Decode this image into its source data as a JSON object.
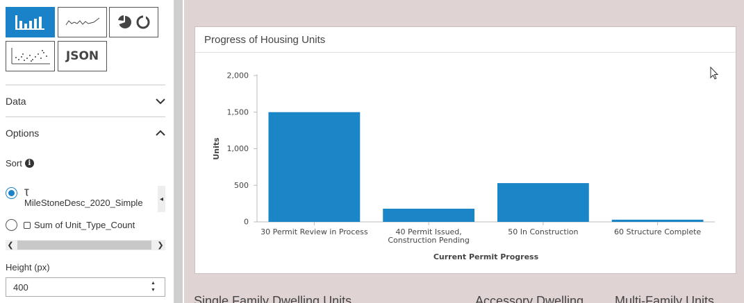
{
  "chart_types": {
    "json_label": "JSON"
  },
  "sections": {
    "data_label": "Data",
    "options_label": "Options"
  },
  "sort": {
    "label": "Sort",
    "options": [
      {
        "label": "MileStoneDesc_2020_Simple",
        "type_icon": "Ʈ",
        "selected": true
      },
      {
        "label": "Sum of Unit_Type_Count",
        "selected": false
      }
    ]
  },
  "height": {
    "label": "Height (px)",
    "value": "400"
  },
  "card": {
    "title": "Progress of Housing Units"
  },
  "bottom_labels": [
    "Single Family Dwelling Units",
    "Accessory Dwelling",
    "Multi-Family Units"
  ],
  "colors": {
    "accent": "#1a82c8",
    "bar": "#1a86c8",
    "background": "#e0d3d3"
  },
  "chart_data": {
    "type": "bar",
    "title": "Progress of Housing Units",
    "xlabel": "Current Permit Progress",
    "ylabel": "Units",
    "ylim": [
      0,
      2000
    ],
    "yticks": [
      0,
      500,
      1000,
      1500,
      2000
    ],
    "ytick_labels": [
      "0",
      "500",
      "1,000",
      "1,500",
      "2,000"
    ],
    "categories": [
      [
        "30 Permit Review in Process"
      ],
      [
        "40 Permit Issued,",
        "Construction Pending"
      ],
      [
        "50 In Construction"
      ],
      [
        "60 Structure Complete"
      ]
    ],
    "values": [
      1500,
      180,
      530,
      30
    ],
    "grid": false,
    "legend": "none"
  }
}
